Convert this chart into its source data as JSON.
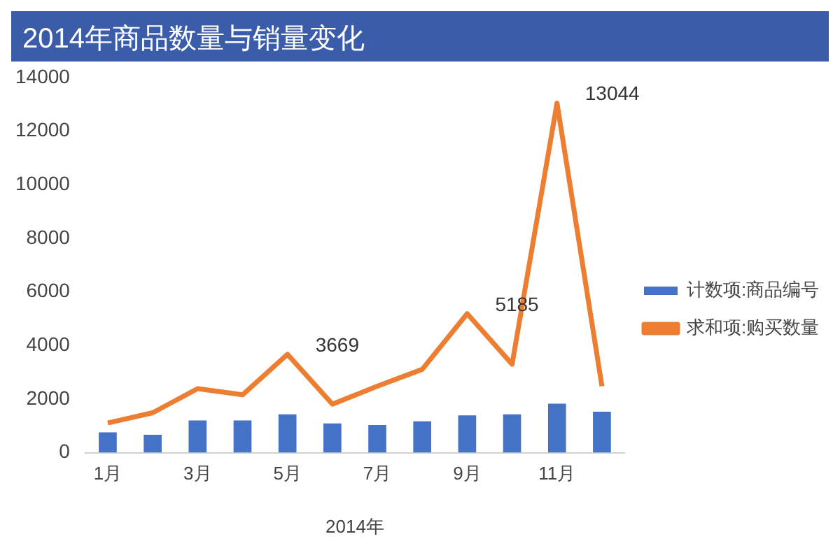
{
  "chart_data": {
    "type": "bar",
    "title": "2014年商品数量与销量变化",
    "xlabel": "2014年",
    "categories": [
      "1月",
      null,
      "3月",
      null,
      "5月",
      null,
      "7月",
      null,
      "9月",
      null,
      "11月",
      null
    ],
    "series": [
      {
        "name": "计数项:商品编号",
        "color": "#4472c4",
        "values": [
          760,
          670,
          1200,
          1200,
          1430,
          1090,
          1030,
          1170,
          1390,
          1430,
          1830,
          1530
        ]
      },
      {
        "name": "求和项:购买数量",
        "type": "line",
        "color": "#ed7d31",
        "values": [
          1110,
          1490,
          2390,
          2160,
          3669,
          1810,
          2480,
          3110,
          5185,
          3300,
          13044,
          2480
        ],
        "value_labels": [
          null,
          null,
          null,
          null,
          "3669",
          null,
          null,
          null,
          "5185",
          null,
          "13044",
          null
        ]
      }
    ],
    "ylim": [
      0,
      14000
    ],
    "yticks": [
      0,
      2000,
      4000,
      6000,
      8000,
      10000,
      12000,
      14000
    ],
    "grid": false,
    "legend": "right"
  }
}
